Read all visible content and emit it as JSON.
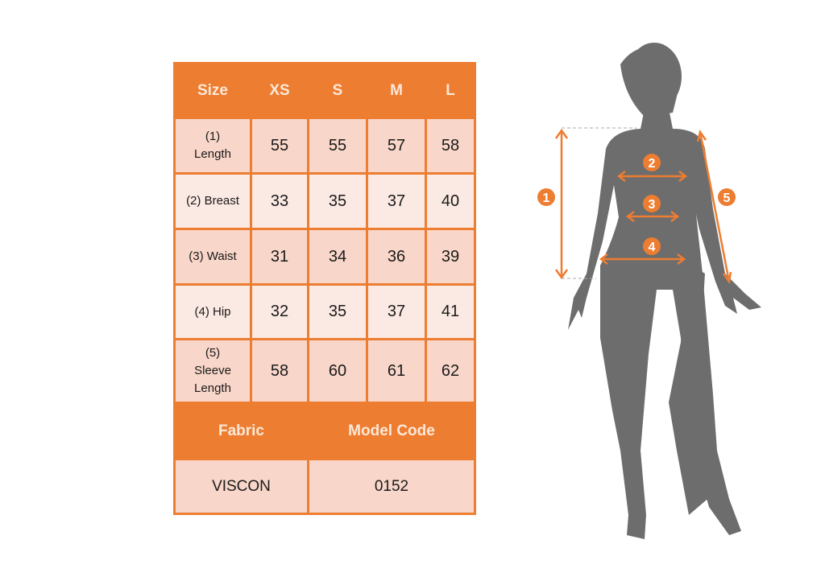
{
  "table": {
    "header": [
      "Size",
      "XS",
      "S",
      "M",
      "L"
    ],
    "rows": [
      {
        "label": "(1) Length",
        "values": [
          "55",
          "55",
          "57",
          "58"
        ]
      },
      {
        "label": "(2) Breast",
        "values": [
          "33",
          "35",
          "37",
          "40"
        ]
      },
      {
        "label": "(3) Waist",
        "values": [
          "31",
          "34",
          "36",
          "39"
        ]
      },
      {
        "label": "(4) Hip",
        "values": [
          "32",
          "35",
          "37",
          "41"
        ]
      },
      {
        "label": "(5) Sleeve Length",
        "values": [
          "58",
          "60",
          "61",
          "62"
        ]
      }
    ],
    "footer_headers": [
      "Fabric",
      "Model Code"
    ],
    "footer_values": [
      "VISCON",
      "0152"
    ]
  },
  "figure": {
    "markers": [
      "1",
      "2",
      "3",
      "4",
      "5"
    ],
    "accent_color": "#ed7d31",
    "silhouette_color": "#6d6d6d"
  }
}
